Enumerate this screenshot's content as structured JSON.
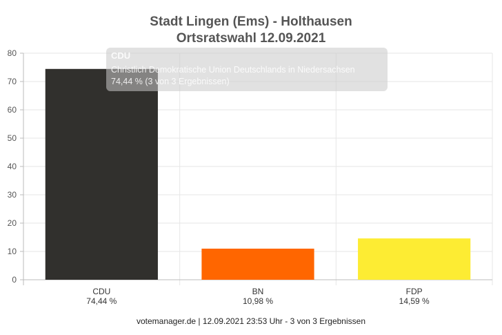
{
  "chart_data": {
    "type": "bar",
    "title": "Stadt Lingen (Ems) - Holthausen",
    "subtitle": "Ortsratswahl 12.09.2021",
    "categories": [
      "CDU",
      "BN",
      "FDP"
    ],
    "category_labels": [
      "74,44 %",
      "10,98 %",
      "14,59 %"
    ],
    "values": [
      74.44,
      10.98,
      14.59
    ],
    "colors": [
      "#31302d",
      "#ff6600",
      "#fdec33"
    ],
    "ylim": [
      0,
      80
    ],
    "yticks": [
      0,
      10,
      20,
      30,
      40,
      50,
      60,
      70,
      80
    ],
    "grid": true,
    "xlabel": "",
    "ylabel": ""
  },
  "tooltip": {
    "title": "CDU",
    "line1": "Christlich Demokratische Union Deutschlands in Niedersachsen",
    "line2": "74,44 % (3 von 3 Ergebnissen)"
  },
  "footer": "votemanager.de | 12.09.2021 23:53 Uhr - 3 von 3 Ergebnissen"
}
